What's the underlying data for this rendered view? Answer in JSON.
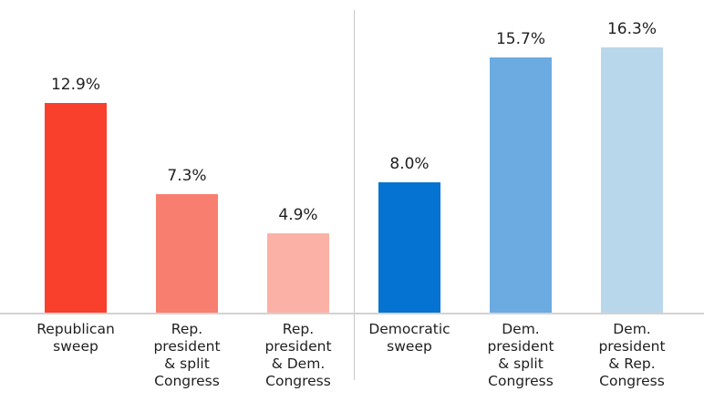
{
  "chart_data": {
    "type": "bar",
    "title": "",
    "xlabel": "",
    "ylabel": "",
    "ylim": [
      0,
      18
    ],
    "grid": false,
    "legend_position": "none",
    "value_suffix": "%",
    "categories": [
      "Republican\nsweep",
      "Rep.\npresident\n& split\nCongress",
      "Rep.\npresident\n& Dem.\nCongress",
      "Democratic\nsweep",
      "Dem.\npresident\n& split\nCongress",
      "Dem.\npresident\n& Rep.\nCongress"
    ],
    "values": [
      12.9,
      7.3,
      4.9,
      8.0,
      15.7,
      16.3
    ],
    "bars": [
      {
        "category": "Republican\nsweep",
        "value": 12.9,
        "value_label": "12.9%",
        "color": "#f9402c"
      },
      {
        "category": "Rep.\npresident\n& split\nCongress",
        "value": 7.3,
        "value_label": "7.3%",
        "color": "#f87f6f"
      },
      {
        "category": "Rep.\npresident\n& Dem.\nCongress",
        "value": 4.9,
        "value_label": "4.9%",
        "color": "#fbb1a6"
      },
      {
        "category": "Democratic\nsweep",
        "value": 8.0,
        "value_label": "8.0%",
        "color": "#0473d1"
      },
      {
        "category": "Dem.\npresident\n& split\nCongress",
        "value": 15.7,
        "value_label": "15.7%",
        "color": "#6cabe1"
      },
      {
        "category": "Dem.\npresident\n& Rep.\nCongress",
        "value": 16.3,
        "value_label": "16.3%",
        "color": "#b9d7ea"
      }
    ],
    "divider_color": "#c6c6c6",
    "baseline_color": "#d2d2d2",
    "text_color": "#1f1f1f",
    "background_color": "#ffffff"
  }
}
